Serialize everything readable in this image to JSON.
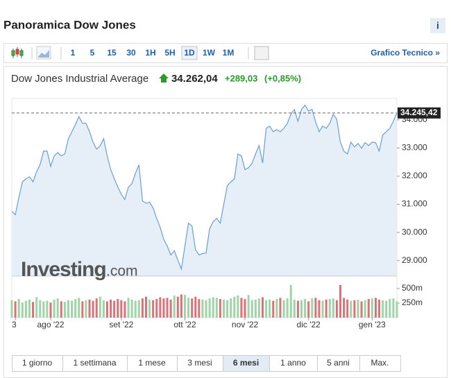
{
  "header": {
    "title": "Panoramica Dow Jones",
    "info": "i"
  },
  "toolbar": {
    "intervals": [
      "1",
      "5",
      "15",
      "30",
      "1H",
      "5H",
      "1D",
      "1W",
      "1M"
    ],
    "active": "1D",
    "link": "Grafico Tecnico »"
  },
  "quote": {
    "name": "Dow Jones Industrial Average",
    "price": "34.262,04",
    "change": "+289,03",
    "percent": "(+0,85%)"
  },
  "chart_data": {
    "type": "line",
    "color": "#6a9fcf",
    "fill": "#e6eef7",
    "values": [
      30750,
      30630,
      31240,
      31800,
      31900,
      31980,
      31800,
      32150,
      32400,
      32890,
      32890,
      32350,
      32720,
      32840,
      32720,
      32790,
      33330,
      33580,
      33830,
      34120,
      33880,
      33880,
      33580,
      33210,
      32960,
      33080,
      33330,
      32720,
      32230,
      31910,
      31610,
      31360,
      31170,
      31610,
      31730,
      32100,
      32400,
      31120,
      31040,
      31070,
      30870,
      30500,
      30180,
      29760,
      29520,
      29200,
      29350,
      29020,
      28700,
      29520,
      30330,
      30230,
      29390,
      29200,
      29250,
      29270,
      30130,
      30380,
      30500,
      30330,
      31000,
      31660,
      31800,
      31900,
      32790,
      32720,
      32230,
      32300,
      32450,
      32790,
      33090,
      32470,
      33700,
      33780,
      33580,
      33650,
      33580,
      33700,
      33880,
      34200,
      34370,
      33950,
      34370,
      34520,
      34320,
      34370,
      33930,
      33580,
      33780,
      33700,
      33880,
      34200,
      34020,
      33210,
      32890,
      32790,
      33210,
      33040,
      33160,
      32990,
      33190,
      33090,
      33210,
      33190,
      32890,
      33460,
      33580,
      33700,
      33950,
      34245.42
    ],
    "xlim": [
      0,
      109
    ],
    "xticks": [
      {
        "value": 1,
        "label": "3"
      },
      {
        "value": 11,
        "label": "ago '22"
      },
      {
        "value": 31,
        "label": "set '22"
      },
      {
        "value": 49,
        "label": "ott '22"
      },
      {
        "value": 66,
        "label": "nov '22"
      },
      {
        "value": 84,
        "label": "dic '22"
      },
      {
        "value": 102,
        "label": "gen '23"
      }
    ],
    "ylim": [
      28450,
      34760
    ],
    "yticks": [
      {
        "value": 29000,
        "label": "29.000"
      },
      {
        "value": 30000,
        "label": "30.000"
      },
      {
        "value": 31000,
        "label": "31.000"
      },
      {
        "value": 32000,
        "label": "32.000"
      },
      {
        "value": 33000,
        "label": "33.000"
      },
      {
        "value": 34000,
        "label": "34.000"
      }
    ],
    "reference_line": {
      "value": 34245.42,
      "label": "34.245,42"
    },
    "watermark": {
      "brand": "Investing",
      "suffix": ".com"
    },
    "volume_values": [
      300,
      280,
      320,
      260,
      290,
      310,
      270,
      350,
      300,
      280,
      290,
      260,
      310,
      330,
      280,
      270,
      300,
      290,
      320,
      340,
      280,
      300,
      310,
      290,
      330,
      360,
      300,
      280,
      310,
      290,
      320,
      300,
      280,
      340,
      310,
      290,
      300,
      330,
      360,
      310,
      300,
      320,
      350,
      330,
      340,
      310,
      380,
      360,
      400,
      390,
      340,
      330,
      360,
      320,
      310,
      300,
      330,
      350,
      340,
      320,
      310,
      300,
      330,
      360,
      380,
      340,
      320,
      390,
      300,
      310,
      330,
      350,
      300,
      310,
      290,
      320,
      340,
      300,
      330,
      560,
      310,
      290,
      300,
      320,
      280,
      330,
      340,
      300,
      290,
      310,
      320,
      330,
      300,
      560,
      340,
      310,
      290,
      300,
      310,
      280,
      300,
      320,
      330,
      340,
      310,
      300,
      290,
      320,
      330,
      280
    ],
    "volume_ylim": [
      0,
      690
    ],
    "volume_ticks": [
      {
        "value": 250,
        "label": "250m"
      },
      {
        "value": 500,
        "label": "500m"
      }
    ],
    "up_color": "#9fd4a8",
    "down_color": "#d9737a"
  },
  "ranges": {
    "items": [
      "1 giorno",
      "1 settimana",
      "1 mese",
      "3 mesi",
      "6 mesi",
      "1 anno",
      "5 anni",
      "Max."
    ],
    "active": "6 mesi"
  }
}
